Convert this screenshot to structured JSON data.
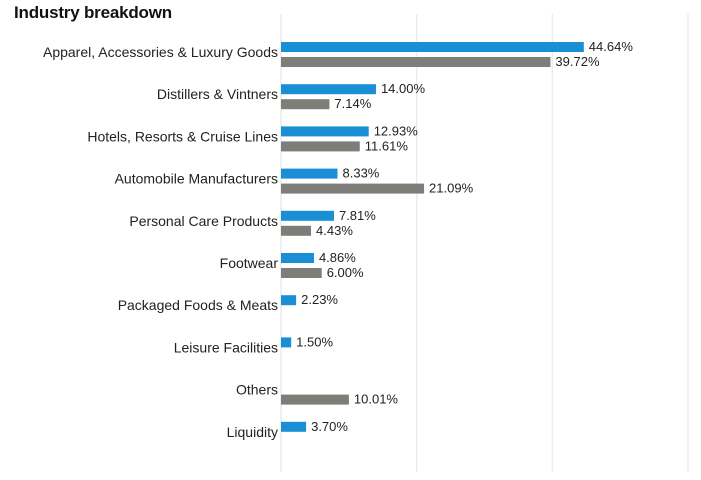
{
  "chart_data": {
    "type": "bar",
    "orientation": "horizontal",
    "title": "Industry breakdown",
    "categories": [
      "Apparel, Accessories & Luxury Goods",
      "Distillers & Vintners",
      "Hotels, Resorts & Cruise Lines",
      "Automobile Manufacturers",
      "Personal Care Products",
      "Footwear",
      "Packaged Foods & Meats",
      "Leisure Facilities",
      "Others",
      "Liquidity"
    ],
    "series": [
      {
        "color": "#1a8fd6",
        "values": [
          44.64,
          14.0,
          12.93,
          8.33,
          7.81,
          4.86,
          2.23,
          1.5,
          null,
          3.7
        ],
        "labels": [
          "44.64%",
          "14.00%",
          "12.93%",
          "8.33%",
          "7.81%",
          "4.86%",
          "2.23%",
          "1.50%",
          null,
          "3.70%"
        ]
      },
      {
        "color": "#7f7d78",
        "values": [
          39.72,
          7.14,
          11.61,
          21.09,
          4.43,
          6.0,
          null,
          null,
          10.01,
          null
        ],
        "labels": [
          "39.72%",
          "7.14%",
          "11.61%",
          "21.09%",
          "4.43%",
          "6.00%",
          null,
          null,
          "10.01%",
          null
        ]
      }
    ],
    "xlim": [
      0,
      60
    ],
    "gridlines": [
      0,
      20,
      40,
      60
    ],
    "grid": true,
    "gridColor": "#ececec",
    "xlabel": "",
    "ylabel": ""
  }
}
